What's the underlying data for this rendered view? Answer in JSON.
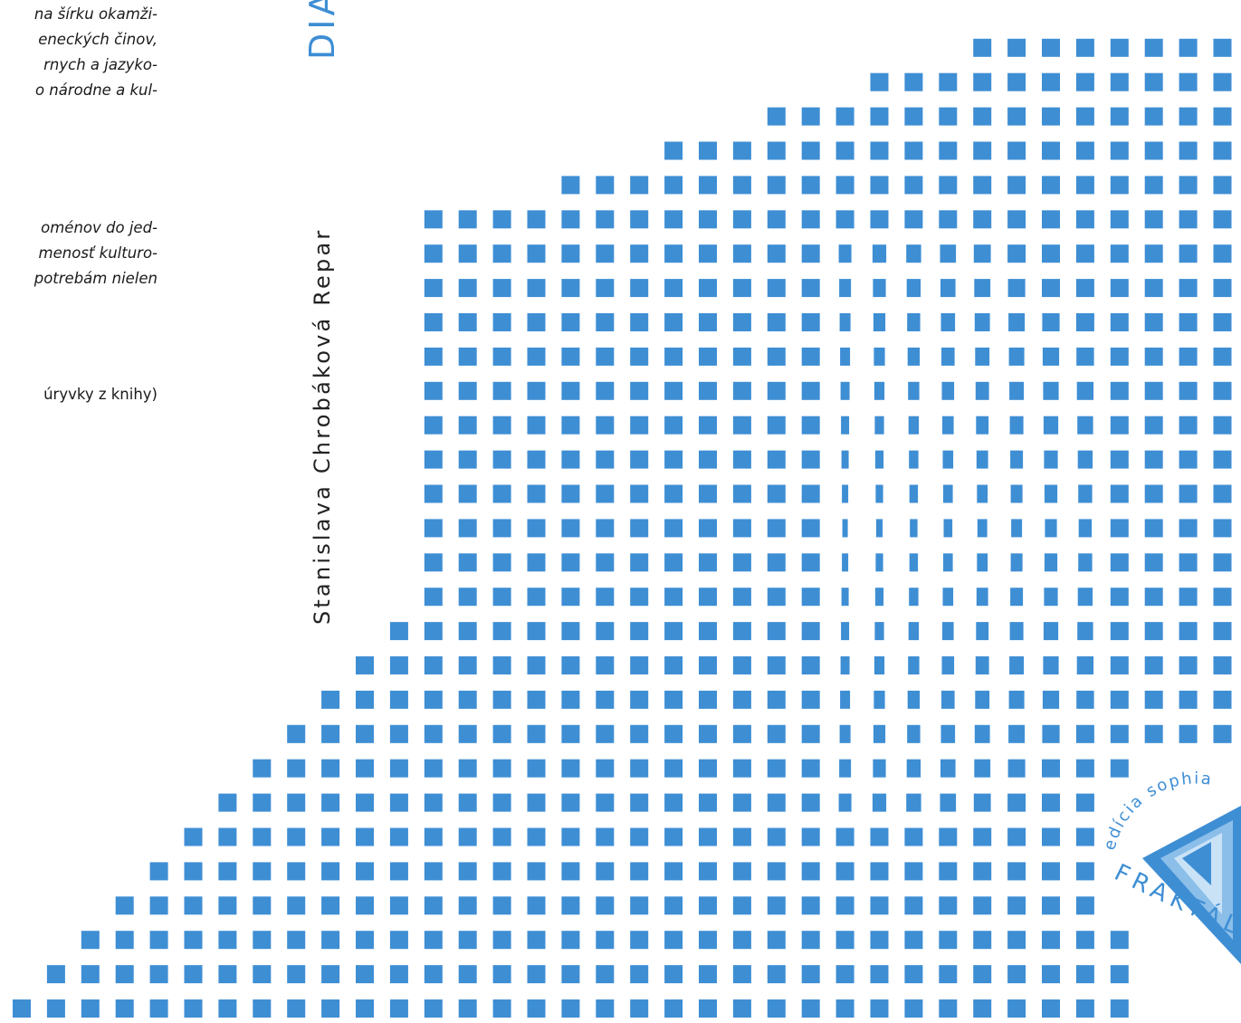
{
  "blurb": {
    "p1": [
      "na šírku okamži-",
      "eneckých činov,",
      "rnych a jazyko-",
      "o národne a kul-"
    ],
    "p2": [
      "oménov do jed-",
      "menosť kulturo-",
      "potrebám nielen"
    ],
    "p3": "úryvky z knihy)"
  },
  "cover": {
    "author": "Stanislava Chrobáková Repar",
    "title_fragment": "DIA"
  },
  "logo": {
    "edition_text": "edícia sophia",
    "brand_text": "FRAKTÁL"
  },
  "colors": {
    "accent": "#3e8ed4",
    "accent_light": "#8bbfe9",
    "accent_pale": "#c9e2f6",
    "text": "#1a1a1a"
  },
  "icons": {
    "mosaic": "pixel-mosaic-pattern",
    "logo": "triangle-fractal-logo"
  }
}
